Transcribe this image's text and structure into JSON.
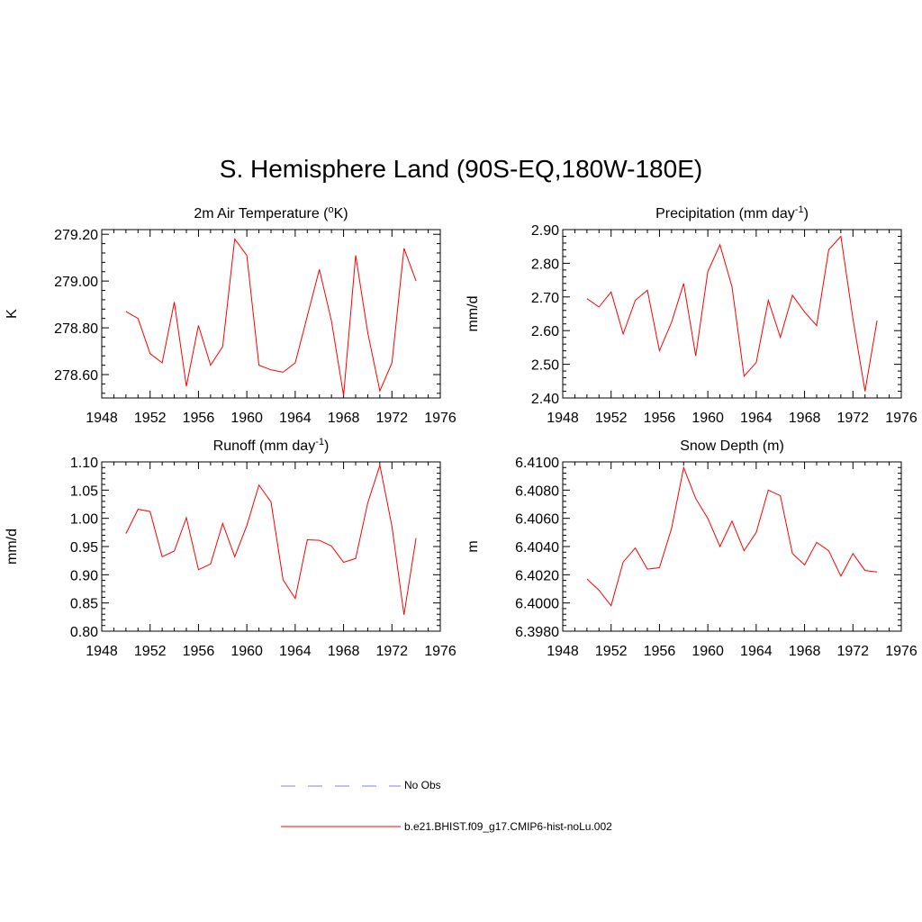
{
  "figure": {
    "title": "S. Hemisphere Land (90S-EQ,180W-180E)"
  },
  "legend": [
    {
      "label": "No Obs",
      "color": "#9a9af0",
      "style": "dashed"
    },
    {
      "label": "b.e21.BHIST.f09_g17.CMIP6-hist-noLu.002",
      "color": "#ff0000",
      "style": "solid"
    }
  ],
  "chart_data": [
    {
      "type": "line",
      "title": "2m Air Temperature (",
      "title_sup": "o",
      "title_tail": "K)",
      "ylabel": "K",
      "xlim": [
        1948,
        1976
      ],
      "ylim": [
        278.5,
        279.22
      ],
      "xticks": [
        "1948",
        "1952",
        "1956",
        "1960",
        "1964",
        "1968",
        "1972",
        "1976"
      ],
      "yticks": [
        278.6,
        278.8,
        279.0,
        279.2
      ],
      "ytick_labels": [
        "278.60",
        "278.80",
        "279.00",
        "279.20"
      ],
      "grid": false,
      "series": [
        {
          "color": "#ff0000",
          "x": [
            1950,
            1951,
            1952,
            1953,
            1954,
            1955,
            1956,
            1957,
            1958,
            1959,
            1960,
            1961,
            1962,
            1963,
            1964,
            1965,
            1966,
            1967,
            1968,
            1969,
            1970,
            1971,
            1972,
            1973,
            1974
          ],
          "values": [
            278.87,
            278.84,
            278.69,
            278.65,
            278.91,
            278.55,
            278.81,
            278.64,
            278.72,
            279.18,
            279.11,
            278.64,
            278.62,
            278.61,
            278.65,
            278.85,
            279.05,
            278.83,
            278.51,
            279.11,
            278.78,
            278.53,
            278.65,
            279.14,
            279.0
          ]
        }
      ]
    },
    {
      "type": "line",
      "title": "Precipitation (mm day",
      "title_sup": "-1",
      "title_tail": ")",
      "ylabel": "mm/d",
      "xlim": [
        1948,
        1976
      ],
      "ylim": [
        2.4,
        2.9
      ],
      "xticks": [
        "1948",
        "1952",
        "1956",
        "1960",
        "1964",
        "1968",
        "1972",
        "1976"
      ],
      "yticks": [
        2.4,
        2.5,
        2.6,
        2.7,
        2.8,
        2.9
      ],
      "ytick_labels": [
        "2.40",
        "2.50",
        "2.60",
        "2.70",
        "2.80",
        "2.90"
      ],
      "grid": false,
      "series": [
        {
          "color": "#ff0000",
          "x": [
            1950,
            1951,
            1952,
            1953,
            1954,
            1955,
            1956,
            1957,
            1958,
            1959,
            1960,
            1961,
            1962,
            1963,
            1964,
            1965,
            1966,
            1967,
            1968,
            1969,
            1970,
            1971,
            1972,
            1973,
            1974
          ],
          "values": [
            2.695,
            2.67,
            2.715,
            2.59,
            2.69,
            2.72,
            2.54,
            2.625,
            2.74,
            2.525,
            2.775,
            2.855,
            2.73,
            2.465,
            2.505,
            2.69,
            2.58,
            2.705,
            2.655,
            2.615,
            2.84,
            2.88,
            2.635,
            2.42,
            2.63
          ]
        }
      ]
    },
    {
      "type": "line",
      "title": "Runoff (mm day",
      "title_sup": "-1",
      "title_tail": ")",
      "ylabel": "mm/d",
      "xlim": [
        1948,
        1976
      ],
      "ylim": [
        0.8,
        1.1
      ],
      "xticks": [
        "1948",
        "1952",
        "1956",
        "1960",
        "1964",
        "1968",
        "1972",
        "1976"
      ],
      "yticks": [
        0.8,
        0.85,
        0.9,
        0.95,
        1.0,
        1.05,
        1.1
      ],
      "ytick_labels": [
        "0.80",
        "0.85",
        "0.90",
        "0.95",
        "1.00",
        "1.05",
        "1.10"
      ],
      "grid": false,
      "series": [
        {
          "color": "#ff0000",
          "x": [
            1950,
            1951,
            1952,
            1953,
            1954,
            1955,
            1956,
            1957,
            1958,
            1959,
            1960,
            1961,
            1962,
            1963,
            1964,
            1965,
            1966,
            1967,
            1968,
            1969,
            1970,
            1971,
            1972,
            1973,
            1974
          ],
          "values": [
            0.973,
            1.016,
            1.012,
            0.932,
            0.942,
            1.001,
            0.909,
            0.919,
            0.991,
            0.932,
            0.987,
            1.059,
            1.029,
            0.891,
            0.858,
            0.962,
            0.961,
            0.951,
            0.922,
            0.929,
            1.027,
            1.094,
            0.986,
            0.829,
            0.965
          ]
        }
      ]
    },
    {
      "type": "line",
      "title": "Snow Depth (m)",
      "title_sup": "",
      "title_tail": "",
      "ylabel": "m",
      "xlim": [
        1948,
        1976
      ],
      "ylim": [
        6.398,
        6.41
      ],
      "xticks": [
        "1948",
        "1952",
        "1956",
        "1960",
        "1964",
        "1968",
        "1972",
        "1976"
      ],
      "yticks": [
        6.398,
        6.4,
        6.402,
        6.404,
        6.406,
        6.408,
        6.41
      ],
      "ytick_labels": [
        "6.3980",
        "6.4000",
        "6.4020",
        "6.4040",
        "6.4060",
        "6.4080",
        "6.4100"
      ],
      "grid": false,
      "series": [
        {
          "color": "#ff0000",
          "x": [
            1950,
            1951,
            1952,
            1953,
            1954,
            1955,
            1956,
            1957,
            1958,
            1959,
            1960,
            1961,
            1962,
            1963,
            1964,
            1965,
            1966,
            1967,
            1968,
            1969,
            1970,
            1971,
            1972,
            1973,
            1974
          ],
          "values": [
            6.4017,
            6.4009,
            6.3998,
            6.4029,
            6.4039,
            6.4024,
            6.4025,
            6.4053,
            6.4096,
            6.4074,
            6.406,
            6.404,
            6.4058,
            6.4037,
            6.405,
            6.408,
            6.4076,
            6.4035,
            6.4027,
            6.4043,
            6.4037,
            6.4019,
            6.4035,
            6.4023,
            6.4022
          ]
        }
      ]
    }
  ]
}
